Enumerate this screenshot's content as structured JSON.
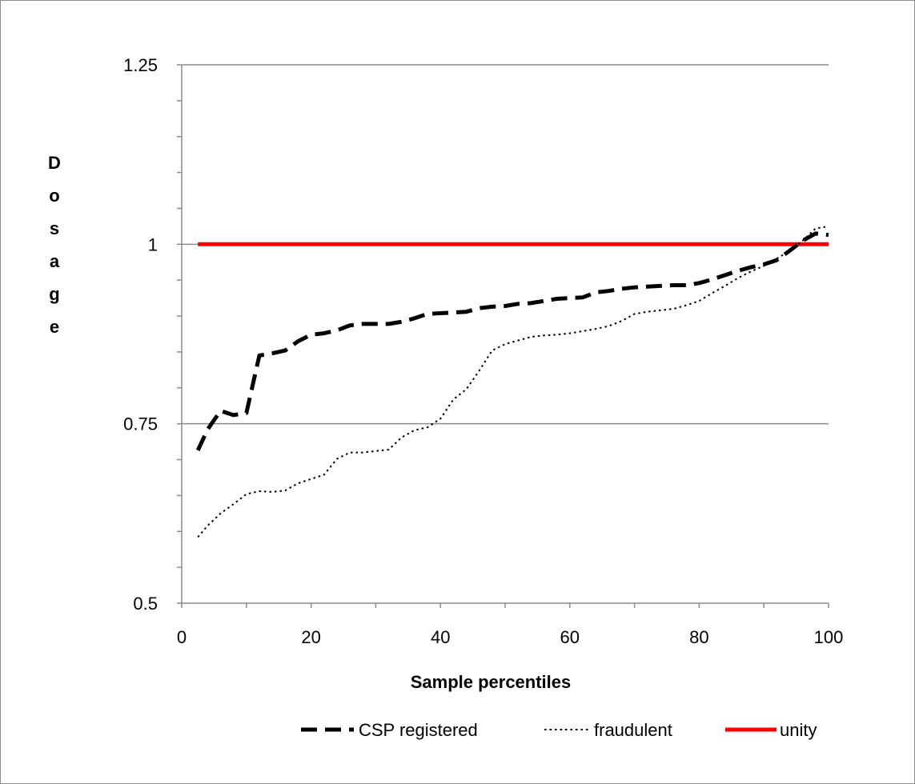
{
  "chart_data": {
    "type": "line",
    "title": "",
    "xlabel": "Sample percentiles",
    "ylabel": "Dosage",
    "xlim": [
      0,
      100
    ],
    "ylim": [
      0.5,
      1.25
    ],
    "x_ticks": [
      0,
      20,
      40,
      60,
      80,
      100
    ],
    "y_ticks": [
      0.5,
      0.75,
      1,
      1.25
    ],
    "x_tick_labels": [
      "0",
      "20",
      "40",
      "60",
      "80",
      "100"
    ],
    "y_tick_labels": [
      "0.5",
      "0.75",
      "1",
      "1.25"
    ],
    "grid": "horizontal major gridlines",
    "legend_position": "bottom",
    "series": [
      {
        "name": "CSP registered",
        "style": "dashed",
        "color": "#000000",
        "x": [
          2.5,
          4,
          6,
          8,
          10,
          12,
          14,
          16,
          18,
          20,
          22,
          24,
          26,
          28,
          30,
          32,
          34,
          36,
          38,
          40,
          42,
          44,
          46,
          48,
          50,
          52,
          54,
          56,
          58,
          60,
          62,
          64,
          66,
          68,
          70,
          72,
          74,
          76,
          78,
          80,
          82,
          84,
          86,
          88,
          90,
          92,
          94,
          96,
          98,
          100
        ],
        "y": [
          0.713,
          0.742,
          0.768,
          0.762,
          0.765,
          0.845,
          0.848,
          0.852,
          0.865,
          0.874,
          0.876,
          0.88,
          0.887,
          0.889,
          0.889,
          0.889,
          0.892,
          0.897,
          0.903,
          0.904,
          0.905,
          0.906,
          0.911,
          0.913,
          0.914,
          0.917,
          0.918,
          0.921,
          0.924,
          0.925,
          0.926,
          0.933,
          0.935,
          0.938,
          0.94,
          0.941,
          0.942,
          0.943,
          0.943,
          0.946,
          0.951,
          0.957,
          0.963,
          0.968,
          0.972,
          0.978,
          0.991,
          1.005,
          1.015,
          1.013
        ]
      },
      {
        "name": "fraudulent",
        "style": "dotted",
        "color": "#000000",
        "x": [
          2.5,
          4,
          6,
          8,
          10,
          12,
          14,
          16,
          18,
          20,
          22,
          24,
          26,
          28,
          30,
          32,
          34,
          36,
          38,
          40,
          42,
          44,
          46,
          48,
          50,
          52,
          54,
          56,
          58,
          60,
          62,
          64,
          66,
          68,
          70,
          72,
          74,
          76,
          78,
          80,
          82,
          84,
          86,
          88,
          90,
          92,
          94,
          96,
          98,
          100
        ],
        "y": [
          0.592,
          0.608,
          0.625,
          0.638,
          0.652,
          0.656,
          0.655,
          0.657,
          0.667,
          0.673,
          0.679,
          0.701,
          0.71,
          0.71,
          0.712,
          0.714,
          0.731,
          0.741,
          0.745,
          0.757,
          0.784,
          0.798,
          0.824,
          0.852,
          0.861,
          0.866,
          0.871,
          0.873,
          0.874,
          0.876,
          0.879,
          0.882,
          0.886,
          0.893,
          0.903,
          0.906,
          0.908,
          0.91,
          0.915,
          0.921,
          0.932,
          0.942,
          0.953,
          0.962,
          0.97,
          0.98,
          0.991,
          1.005,
          1.022,
          1.025
        ]
      },
      {
        "name": "unity",
        "style": "solid",
        "color": "#ff0000",
        "x": [
          2.5,
          100
        ],
        "y": [
          1,
          1
        ]
      }
    ]
  }
}
